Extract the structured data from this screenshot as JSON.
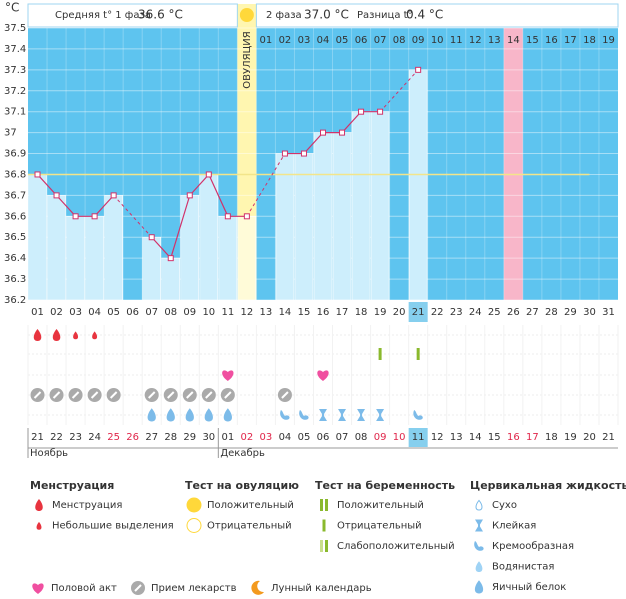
{
  "header": {
    "phase1_label": "Средняя t° 1 фаза",
    "phase1_value": "36.6 °C",
    "phase2_label": "2 фаза",
    "phase2_value": "37.0 °C",
    "diff_label": "Разница t°",
    "diff_value": "0.4 °C"
  },
  "chart_data": {
    "type": "line",
    "y_unit": "°C",
    "categories": [
      "01",
      "02",
      "03",
      "04",
      "05",
      "06",
      "07",
      "08",
      "09",
      "10",
      "11",
      "12",
      "13",
      "14",
      "15",
      "16",
      "17",
      "18",
      "19",
      "20",
      "21",
      "22",
      "23",
      "24",
      "25",
      "26",
      "27",
      "28",
      "29",
      "30",
      "31"
    ],
    "dpo": [
      null,
      null,
      null,
      null,
      null,
      null,
      null,
      null,
      null,
      null,
      null,
      null,
      "01",
      "02",
      "03",
      "04",
      "05",
      "06",
      "07",
      "08",
      "09",
      "10",
      "11",
      "12",
      "13",
      "14",
      "15",
      "16",
      "17",
      "18",
      "19"
    ],
    "values": [
      36.8,
      36.7,
      36.6,
      36.6,
      36.7,
      null,
      36.5,
      36.4,
      36.7,
      36.8,
      36.6,
      36.6,
      null,
      36.9,
      36.9,
      37.0,
      37.0,
      37.1,
      37.1,
      null,
      37.3,
      null,
      null,
      null,
      null,
      null,
      null,
      null,
      null,
      null,
      null
    ],
    "ylim": [
      36.2,
      37.5
    ],
    "yticks": [
      36.2,
      36.3,
      36.4,
      36.5,
      36.6,
      36.7,
      36.8,
      36.9,
      37,
      37.1,
      37.2,
      37.3,
      37.4,
      37.5
    ],
    "coverline": 36.8,
    "ovulation_label": "ОВУЛЯЦИЯ",
    "ovulation_day": "12",
    "expected_day": "26",
    "today": "21",
    "line_color": "#d2326a",
    "bar_color": "#cdeefc",
    "plot_color": "#5ec4ef",
    "coverline_color": "#f3e58a"
  },
  "calendar": {
    "dates": [
      "21",
      "22",
      "23",
      "24",
      "25",
      "26",
      "27",
      "28",
      "29",
      "30",
      "01",
      "02",
      "03",
      "04",
      "05",
      "06",
      "07",
      "08",
      "09",
      "10",
      "11",
      "12",
      "13",
      "14",
      "15",
      "16",
      "17",
      "18",
      "19",
      "20",
      "21"
    ],
    "date_colors": [
      "#333",
      "#333",
      "#333",
      "#333",
      "#e0264a",
      "#e0264a",
      "#333",
      "#333",
      "#333",
      "#333",
      "#333",
      "#e0264a",
      "#e0264a",
      "#333",
      "#333",
      "#333",
      "#333",
      "#333",
      "#e0264a",
      "#e0264a",
      "#333",
      "#333",
      "#333",
      "#333",
      "#333",
      "#e0264a",
      "#e0264a",
      "#333",
      "#333",
      "#333",
      "#333"
    ],
    "months": [
      {
        "label": "Ноябрь",
        "day": "01"
      },
      {
        "label": "Декабрь",
        "day": "11"
      }
    ]
  },
  "legend": {
    "groups": [
      {
        "title": "Менструация",
        "items": [
          {
            "label": "Менструация",
            "days": [
              "01",
              "02"
            ]
          },
          {
            "label": "Небольшие выделения",
            "days": [
              "03",
              "04"
            ]
          }
        ]
      },
      {
        "title": "Тест на овуляцию",
        "items": [
          {
            "label": "Положительный",
            "days": []
          },
          {
            "label": "Отрицательный",
            "days": []
          }
        ]
      },
      {
        "title": "Тест на беременность",
        "items": [
          {
            "label": "Положительный",
            "days": []
          },
          {
            "label": "Отрицательный",
            "days": [
              "19",
              "21"
            ]
          },
          {
            "label": "Слабоположительный",
            "days": []
          }
        ]
      },
      {
        "title": "Цервикальная жидкость",
        "items": [
          {
            "label": "Сухо",
            "days": []
          },
          {
            "label": "Клейкая",
            "days": [
              "16",
              "17",
              "18",
              "19"
            ]
          },
          {
            "label": "Кремообразная",
            "days": [
              "14",
              "15",
              "21"
            ]
          },
          {
            "label": "Водянистая",
            "days": []
          },
          {
            "label": "Яичный белок",
            "days": [
              "07",
              "08",
              "09",
              "10",
              "11"
            ]
          }
        ]
      }
    ],
    "extras": [
      {
        "label": "Половой акт",
        "days": [
          "11",
          "16"
        ]
      },
      {
        "label": "Прием лекарств",
        "days": [
          "01",
          "02",
          "03",
          "04",
          "05",
          "07",
          "08",
          "09",
          "10",
          "11",
          "14"
        ]
      },
      {
        "label": "Лунный календарь",
        "days": []
      }
    ]
  }
}
